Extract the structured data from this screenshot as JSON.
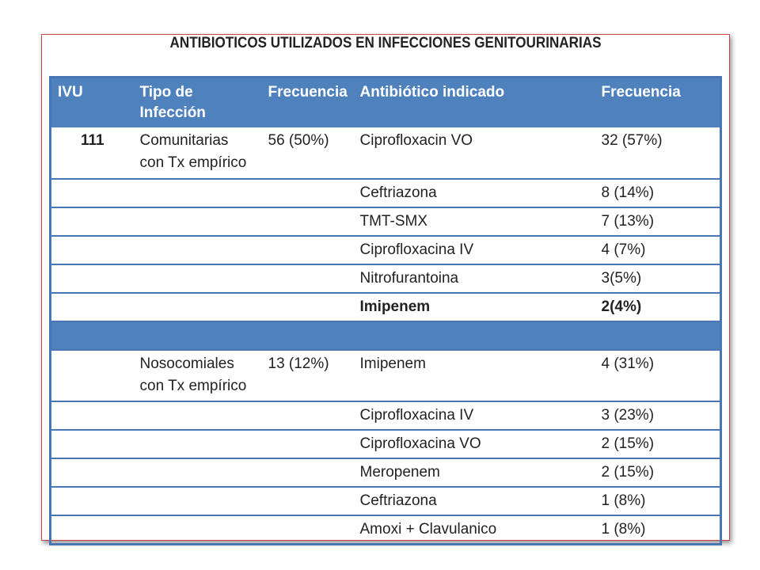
{
  "title": "ANTIBIOTICOS UTILIZADOS EN INFECCIONES GENITOURINARIAS",
  "colors": {
    "header_bg": "#4f81bd",
    "border": "#4a77b4",
    "highlight": "#ee1c1c",
    "frame_border": "#c9474b"
  },
  "table": {
    "headers": {
      "ivu": "IVU",
      "tipo": "Tipo de Infección",
      "frecuencia": "Frecuencia",
      "antibiotico": "Antibiótico indicado",
      "frecuencia2": "Frecuencia"
    },
    "group1": {
      "ivu": "111",
      "tipo": "Comunitarias con Tx empírico",
      "frecuencia": "56 (50%)",
      "rows": [
        {
          "antibiotico": "Ciprofloxacin VO",
          "frecuencia": "32 (57%)"
        },
        {
          "antibiotico": "Ceftriazona",
          "frecuencia": "8 (14%)"
        },
        {
          "antibiotico": "TMT-SMX",
          "frecuencia": "7 (13%)"
        },
        {
          "antibiotico": "Ciprofloxacina IV",
          "frecuencia": "4 (7%)"
        },
        {
          "antibiotico": "Nitrofurantoina",
          "frecuencia": "3(5%)"
        },
        {
          "antibiotico": "Imipenem",
          "frecuencia": "2(4%)"
        }
      ]
    },
    "group2": {
      "tipo": "Nosocomiales con Tx empírico",
      "frecuencia": "13 (12%)",
      "rows": [
        {
          "antibiotico": "Imipenem",
          "frecuencia": "4 (31%)"
        },
        {
          "antibiotico": "Ciprofloxacina IV",
          "frecuencia": "3 (23%)"
        },
        {
          "antibiotico": "Ciprofloxacina VO",
          "frecuencia": "2 (15%)"
        },
        {
          "antibiotico": "Meropenem",
          "frecuencia": "2 (15%)"
        },
        {
          "antibiotico": "Ceftriazona",
          "frecuencia": "1 (8%)"
        },
        {
          "antibiotico": "Amoxi + Clavulanico",
          "frecuencia": "1 (8%)"
        }
      ]
    }
  }
}
